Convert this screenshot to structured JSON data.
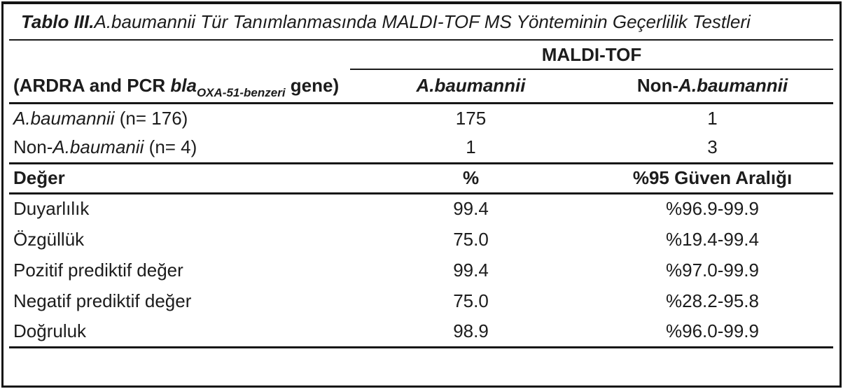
{
  "table": {
    "title_prefix": "Tablo III.",
    "title_rest": " A.baumannii Tür Tanımlanmasında MALDI-TOF MS Yönteminin Geçerlilik Testleri",
    "spanner_label": "MALDI-TOF",
    "header": {
      "row_label_prefix": "(ARDRA and PCR ",
      "row_label_gene_italic": "bla",
      "row_label_subscript": "OXA-51-benzeri",
      "row_label_suffix": " gene)",
      "col_a_label": "A.baumannii",
      "col_b_prefix": "Non-",
      "col_b_italic": "A.baumannii"
    },
    "count_rows": [
      {
        "label_prefix": "",
        "label_italic": "A.baumannii",
        "label_rest": " (n= 176)",
        "col_a": "175",
        "col_b": "1"
      },
      {
        "label_prefix": "Non-",
        "label_italic": "A.baumanii",
        "label_rest": " (n= 4)",
        "col_a": "1",
        "col_b": "3"
      }
    ],
    "metric_header": {
      "label": "Değer",
      "col_a": "%",
      "col_b": "%95 Güven Aralığı"
    },
    "metric_rows": [
      {
        "label": "Duyarlılık",
        "value": "99.4",
        "ci": "%96.9-99.9"
      },
      {
        "label": "Özgüllük",
        "value": "75.0",
        "ci": "%19.4-99.4"
      },
      {
        "label": "Pozitif prediktif değer",
        "value": "99.4",
        "ci": "%97.0-99.9"
      },
      {
        "label": "Negatif prediktif değer",
        "value": "75.0",
        "ci": "%28.2-95.8"
      },
      {
        "label": "Doğruluk",
        "value": "98.9",
        "ci": "%96.0-99.9"
      }
    ]
  },
  "chart_data": {
    "type": "table",
    "title": "Tablo III. A.baumannii Tür Tanımlanmasında MALDI-TOF MS Yönteminin Geçerlilik Testleri",
    "confusion_matrix": {
      "reference_method": "(ARDRA and PCR blaOXA-51-benzeri gene)",
      "columns": [
        "A.baumannii",
        "Non-A.baumannii"
      ],
      "rows": [
        {
          "label": "A.baumannii (n= 176)",
          "values": [
            175,
            1
          ]
        },
        {
          "label": "Non-A.baumanii (n= 4)",
          "values": [
            1,
            3
          ]
        }
      ]
    },
    "metrics": {
      "columns": [
        "Değer",
        "%",
        "%95 Güven Aralığı"
      ],
      "rows": [
        [
          "Duyarlılık",
          99.4,
          "%96.9-99.9"
        ],
        [
          "Özgüllük",
          75.0,
          "%19.4-99.4"
        ],
        [
          "Pozitif prediktif değer",
          99.4,
          "%97.0-99.9"
        ],
        [
          "Negatif prediktif değer",
          75.0,
          "%28.2-95.8"
        ],
        [
          "Doğruluk",
          98.9,
          "%96.0-99.9"
        ]
      ]
    }
  }
}
